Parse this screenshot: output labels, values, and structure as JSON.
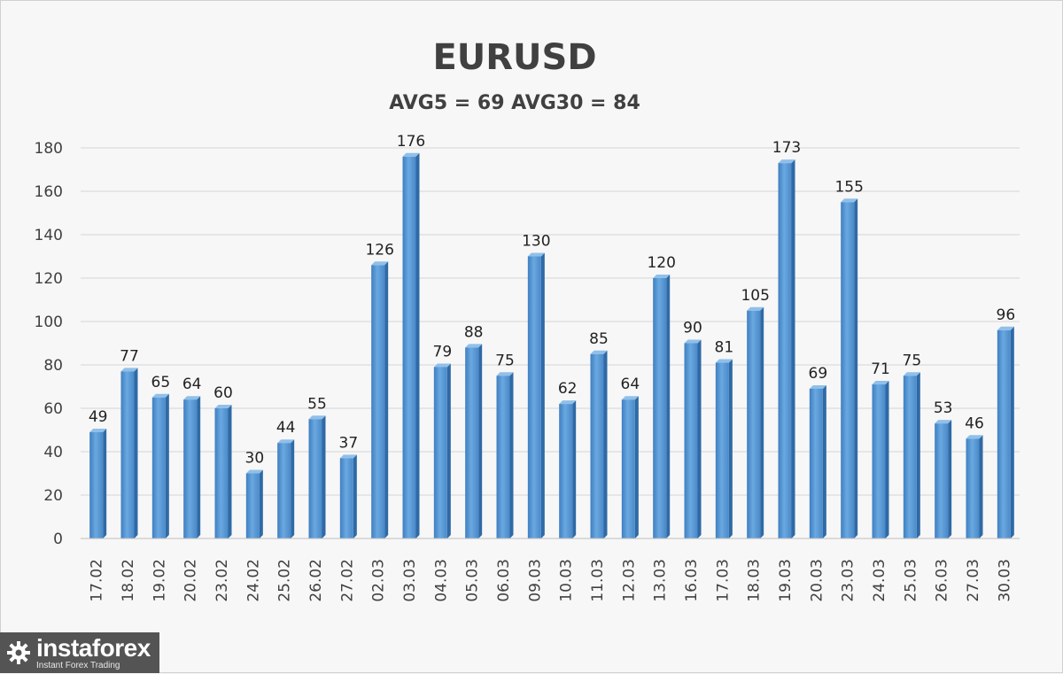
{
  "chart_data": {
    "type": "bar",
    "title": "EURUSD",
    "subtitle": "AVG5 = 69 AVG30 = 84",
    "categories": [
      "17.02",
      "18.02",
      "19.02",
      "20.02",
      "23.02",
      "24.02",
      "25.02",
      "26.02",
      "27.02",
      "02.03",
      "03.03",
      "04.03",
      "05.03",
      "06.03",
      "09.03",
      "10.03",
      "11.03",
      "12.03",
      "13.03",
      "16.03",
      "17.03",
      "18.03",
      "19.03",
      "20.03",
      "23.03",
      "24.03",
      "25.03",
      "26.03",
      "27.03",
      "30.03"
    ],
    "values": [
      49,
      77,
      65,
      64,
      60,
      30,
      44,
      55,
      37,
      126,
      176,
      79,
      88,
      75,
      130,
      62,
      85,
      64,
      120,
      90,
      81,
      105,
      173,
      69,
      155,
      71,
      75,
      53,
      46,
      96
    ],
    "xlabel": "",
    "ylabel": "",
    "ylim": [
      0,
      180
    ],
    "yticks": [
      0,
      20,
      40,
      60,
      80,
      100,
      120,
      140,
      160,
      180
    ],
    "grid": true,
    "data_labels": true,
    "bar_color": "#5b9bd5"
  },
  "logo": {
    "name": "instaforex",
    "tagline": "Instant Forex Trading"
  }
}
